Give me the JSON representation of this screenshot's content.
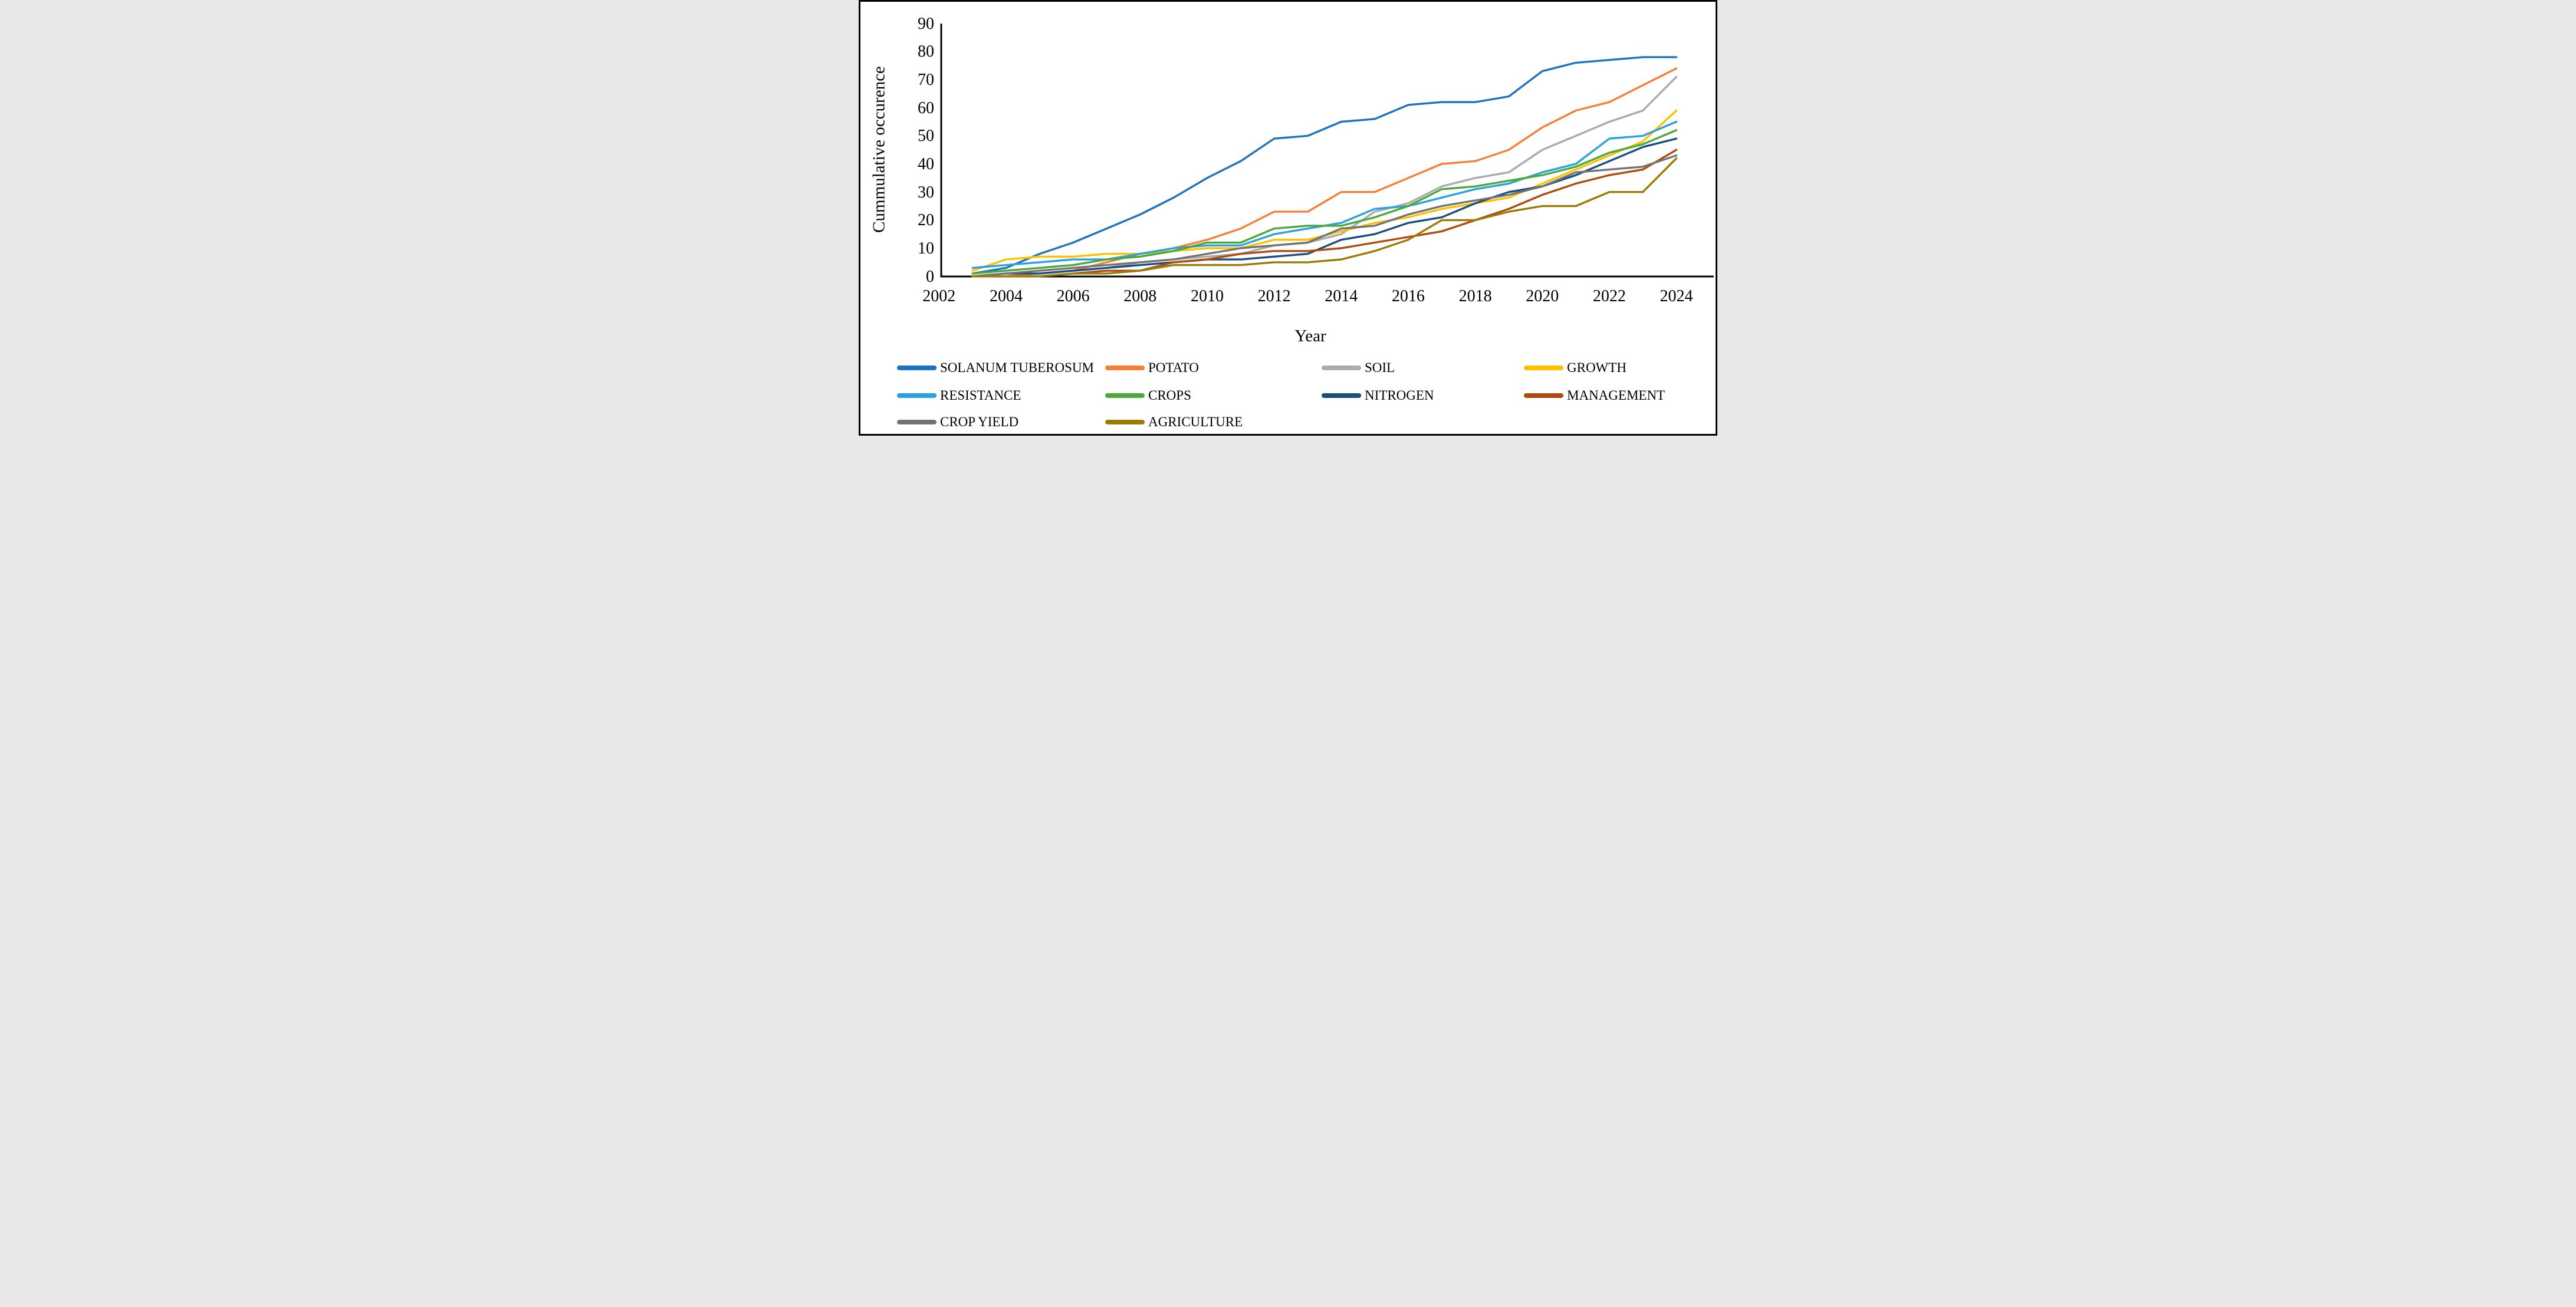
{
  "figure": {
    "background": "#FFFFFF",
    "border_color": "#000000",
    "axis_color": "#000000"
  },
  "chart_data": {
    "type": "line",
    "title": "",
    "xlabel": "Year",
    "ylabel": "Cummulative occurence",
    "xlim": [
      2002,
      2025.1
    ],
    "ylim": [
      0,
      90
    ],
    "x_ticks": [
      2002,
      2004,
      2006,
      2008,
      2010,
      2012,
      2014,
      2016,
      2018,
      2020,
      2022,
      2024
    ],
    "y_ticks": [
      0,
      10,
      20,
      30,
      40,
      50,
      60,
      70,
      80,
      90
    ],
    "grid": false,
    "legend_position": "bottom",
    "x": [
      2003,
      2004,
      2005,
      2006,
      2007,
      2008,
      2009,
      2010,
      2011,
      2012,
      2013,
      2014,
      2015,
      2016,
      2017,
      2018,
      2019,
      2020,
      2021,
      2022,
      2023,
      2024
    ],
    "series": [
      {
        "name": "SOLANUM TUBEROSUM",
        "color": "#1E73BE",
        "values": [
          1,
          3,
          8,
          12,
          17,
          22,
          28,
          35,
          41,
          49,
          50,
          55,
          56,
          61,
          62,
          62,
          64,
          73,
          76,
          77,
          78,
          78
        ]
      },
      {
        "name": "POTATO",
        "color": "#F58138",
        "values": [
          0,
          0,
          1,
          2,
          5,
          8,
          10,
          13,
          17,
          23,
          23,
          30,
          30,
          35,
          40,
          41,
          45,
          53,
          59,
          62,
          68,
          74
        ]
      },
      {
        "name": "SOIL",
        "color": "#ABABAB",
        "values": [
          0,
          1,
          1,
          2,
          3,
          5,
          6,
          7,
          8,
          11,
          12,
          15,
          23,
          26,
          32,
          35,
          37,
          45,
          50,
          55,
          59,
          71
        ]
      },
      {
        "name": "GROWTH",
        "color": "#FFC000",
        "values": [
          2,
          6,
          7,
          7,
          8,
          8,
          9,
          10,
          10,
          13,
          13,
          16,
          19,
          21,
          24,
          26,
          28,
          33,
          38,
          43,
          48,
          59
        ]
      },
      {
        "name": "RESISTANCE",
        "color": "#2BA1DE",
        "values": [
          3,
          4,
          5,
          6,
          6,
          8,
          10,
          11,
          11,
          15,
          17,
          19,
          24,
          25,
          28,
          31,
          33,
          37,
          40,
          49,
          50,
          55
        ]
      },
      {
        "name": "CROPS",
        "color": "#4BA93B",
        "values": [
          1,
          2,
          3,
          4,
          6,
          7,
          9,
          12,
          12,
          17,
          18,
          18,
          21,
          25,
          31,
          32,
          34,
          36,
          39,
          44,
          47,
          52
        ]
      },
      {
        "name": "NITROGEN",
        "color": "#1A4E7E",
        "values": [
          0,
          1,
          1,
          2,
          3,
          4,
          5,
          6,
          6,
          7,
          8,
          13,
          15,
          19,
          21,
          26,
          30,
          32,
          36,
          41,
          46,
          49
        ]
      },
      {
        "name": "MANAGEMENT",
        "color": "#B04A0E",
        "values": [
          0,
          0,
          0,
          1,
          2,
          2,
          5,
          6,
          8,
          9,
          9,
          10,
          12,
          14,
          16,
          20,
          24,
          29,
          33,
          36,
          38,
          45
        ]
      },
      {
        "name": "CROP YIELD",
        "color": "#737373",
        "values": [
          0,
          1,
          2,
          3,
          4,
          5,
          6,
          8,
          10,
          11,
          12,
          17,
          18,
          22,
          25,
          27,
          29,
          32,
          37,
          38,
          39,
          43
        ]
      },
      {
        "name": "AGRICULTURE",
        "color": "#9C7A06",
        "values": [
          0,
          0,
          0,
          1,
          1,
          2,
          4,
          4,
          4,
          5,
          5,
          6,
          9,
          13,
          20,
          20,
          23,
          25,
          25,
          30,
          30,
          42
        ]
      }
    ]
  },
  "legend": {
    "columns": [
      [
        "SOLANUM TUBEROSUM",
        "RESISTANCE",
        "CROP YIELD"
      ],
      [
        "POTATO",
        "CROPS",
        "AGRICULTURE"
      ],
      [
        "SOIL",
        "NITROGEN"
      ],
      [
        "GROWTH",
        "MANAGEMENT"
      ]
    ]
  }
}
